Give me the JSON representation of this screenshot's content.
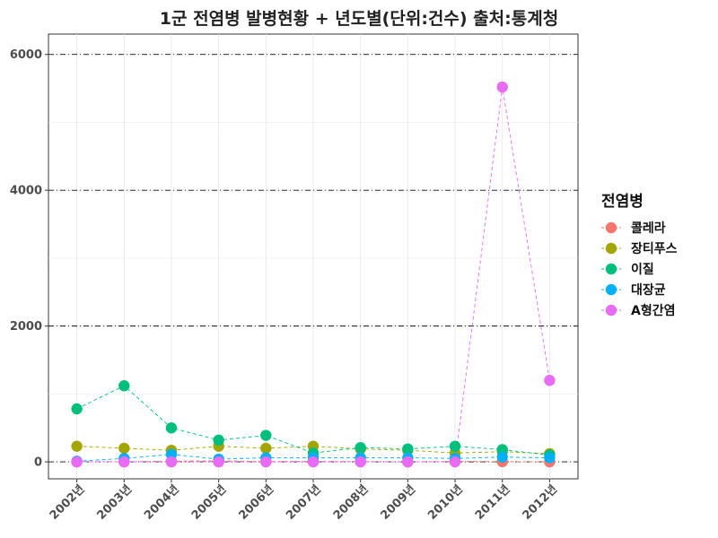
{
  "chart_data": {
    "type": "line",
    "title": "1군 전염병 발병현황 + 년도별(단위:건수) 출처:통계청",
    "xlabel": "",
    "ylabel": "",
    "categories": [
      "2002년",
      "2003년",
      "2004년",
      "2005년",
      "2006년",
      "2007년",
      "2008년",
      "2009년",
      "2010년",
      "2011년",
      "2012년"
    ],
    "ylim": [
      -250,
      6300
    ],
    "yticks": [
      0,
      2000,
      4000,
      6000
    ],
    "ytick_labels": [
      "0",
      "2000",
      "4000",
      "6000"
    ],
    "hlines": [
      0,
      2000,
      4000,
      6000
    ],
    "legend_title": "전염병",
    "legend_position": "right",
    "grid": true,
    "series": [
      {
        "name": "콜레라",
        "color": "#F8766D",
        "values": [
          0,
          0,
          10,
          15,
          5,
          7,
          5,
          0,
          8,
          3,
          0
        ]
      },
      {
        "name": "장티푸스",
        "color": "#A3A500",
        "values": [
          230,
          200,
          170,
          230,
          200,
          230,
          190,
          170,
          130,
          150,
          120
        ]
      },
      {
        "name": "이질",
        "color": "#00BF7D",
        "values": [
          780,
          1120,
          500,
          320,
          390,
          130,
          210,
          190,
          230,
          180,
          100
        ]
      },
      {
        "name": "대장균",
        "color": "#00B0F6",
        "values": [
          10,
          50,
          110,
          40,
          60,
          60,
          60,
          60,
          50,
          70,
          60
        ]
      },
      {
        "name": "A형간염",
        "color": "#E76BF3",
        "values": [
          0,
          0,
          0,
          0,
          0,
          0,
          0,
          0,
          0,
          5520,
          1200
        ]
      }
    ]
  }
}
